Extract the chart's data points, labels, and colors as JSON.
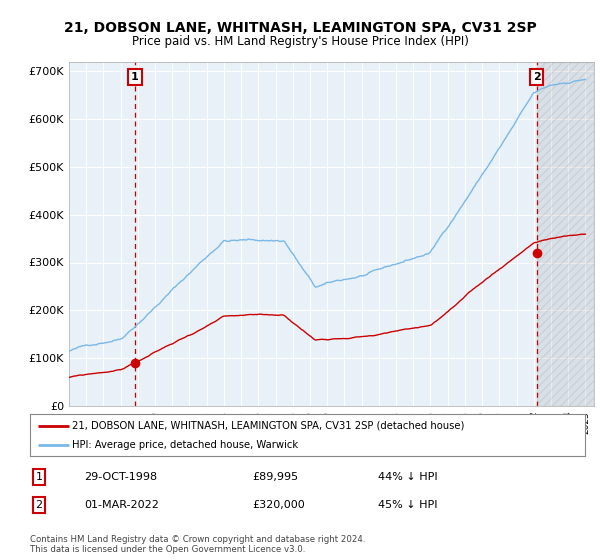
{
  "title": "21, DOBSON LANE, WHITNASH, LEAMINGTON SPA, CV31 2SP",
  "subtitle": "Price paid vs. HM Land Registry's House Price Index (HPI)",
  "title_fontsize": 10,
  "subtitle_fontsize": 8.5,
  "ylim": [
    0,
    720000
  ],
  "yticks": [
    0,
    100000,
    200000,
    300000,
    400000,
    500000,
    600000,
    700000
  ],
  "ytick_labels": [
    "£0",
    "£100K",
    "£200K",
    "£300K",
    "£400K",
    "£500K",
    "£600K",
    "£700K"
  ],
  "hpi_color": "#7ab8e8",
  "price_color": "#cc0000",
  "sale1_year": 1998.83,
  "sale1_price": 89995,
  "sale2_year": 2022.17,
  "sale2_price": 320000,
  "legend_line1": "21, DOBSON LANE, WHITNASH, LEAMINGTON SPA, CV31 2SP (detached house)",
  "legend_line2": "HPI: Average price, detached house, Warwick",
  "table_row1": [
    "1",
    "29-OCT-1998",
    "£89,995",
    "44% ↓ HPI"
  ],
  "table_row2": [
    "2",
    "01-MAR-2022",
    "£320,000",
    "45% ↓ HPI"
  ],
  "footnote": "Contains HM Land Registry data © Crown copyright and database right 2024.\nThis data is licensed under the Open Government Licence v3.0.",
  "bg_color": "#ffffff",
  "plot_bg_color": "#e8f0f8",
  "grid_color": "#ffffff"
}
